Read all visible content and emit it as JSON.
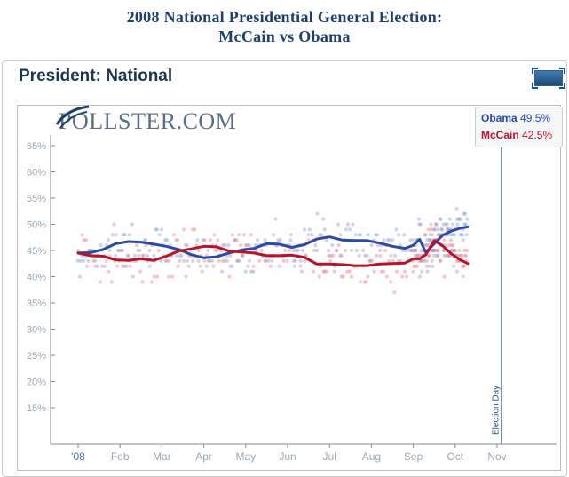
{
  "page": {
    "title_line1": "2008 National Presidential General Election:",
    "title_line2": "McCain vs Obama"
  },
  "panel": {
    "title": "President: National"
  },
  "logo": {
    "text": "POLLSTER.COM"
  },
  "legend": [
    {
      "name": "Obama",
      "value": "49.5%",
      "color": "#2a4aa8"
    },
    {
      "name": "McCain",
      "value": "42.5%",
      "color": "#b5142a"
    }
  ],
  "chart_data": {
    "type": "line",
    "title": "",
    "xlabel": "",
    "ylabel": "",
    "x_ticks": [
      "'08",
      "Feb",
      "Mar",
      "Apr",
      "May",
      "Jun",
      "Jul",
      "Aug",
      "Sep",
      "Oct",
      "Nov"
    ],
    "y_ticks": [
      "15%",
      "20%",
      "25%",
      "30%",
      "35%",
      "40%",
      "45%",
      "50%",
      "55%",
      "60%",
      "65%"
    ],
    "ylim": [
      10,
      67
    ],
    "x_range_months": [
      1,
      11
    ],
    "annotation": {
      "label": "Election Day",
      "x_month": 11.1
    },
    "series": [
      {
        "name": "Obama",
        "color": "#2a4aa8",
        "x_month": [
          1.0,
          1.3,
          1.6,
          1.9,
          2.2,
          2.5,
          2.8,
          3.1,
          3.4,
          3.7,
          4.0,
          4.3,
          4.6,
          4.9,
          5.2,
          5.5,
          5.8,
          6.1,
          6.4,
          6.7,
          7.0,
          7.3,
          7.6,
          7.9,
          8.2,
          8.5,
          8.8,
          9.0,
          9.15,
          9.3,
          9.5,
          9.7,
          9.9,
          10.1,
          10.3
        ],
        "values": [
          44.5,
          44.6,
          45.2,
          46.3,
          46.7,
          46.6,
          46.2,
          45.8,
          45.2,
          44.2,
          43.6,
          43.8,
          44.5,
          45.1,
          45.4,
          46.3,
          46.2,
          45.6,
          46.1,
          47.2,
          47.6,
          47.0,
          46.9,
          46.9,
          46.4,
          45.8,
          45.4,
          46.0,
          47.1,
          44.6,
          46.3,
          47.9,
          48.7,
          49.2,
          49.5
        ]
      },
      {
        "name": "McCain",
        "color": "#b5142a",
        "x_month": [
          1.0,
          1.3,
          1.6,
          1.9,
          2.2,
          2.5,
          2.8,
          3.1,
          3.4,
          3.7,
          4.0,
          4.3,
          4.6,
          4.9,
          5.2,
          5.5,
          5.8,
          6.1,
          6.4,
          6.7,
          7.0,
          7.3,
          7.6,
          7.9,
          8.2,
          8.5,
          8.8,
          9.0,
          9.15,
          9.3,
          9.5,
          9.7,
          9.9,
          10.1,
          10.3
        ],
        "values": [
          44.5,
          44.0,
          43.9,
          43.2,
          43.1,
          43.4,
          43.1,
          43.9,
          44.9,
          45.3,
          45.8,
          45.7,
          44.9,
          44.7,
          44.5,
          44.0,
          44.0,
          44.1,
          43.7,
          42.4,
          42.4,
          42.3,
          42.1,
          42.1,
          42.4,
          42.5,
          42.6,
          43.4,
          43.4,
          44.2,
          46.9,
          45.9,
          44.4,
          43.3,
          42.5
        ]
      }
    ]
  }
}
